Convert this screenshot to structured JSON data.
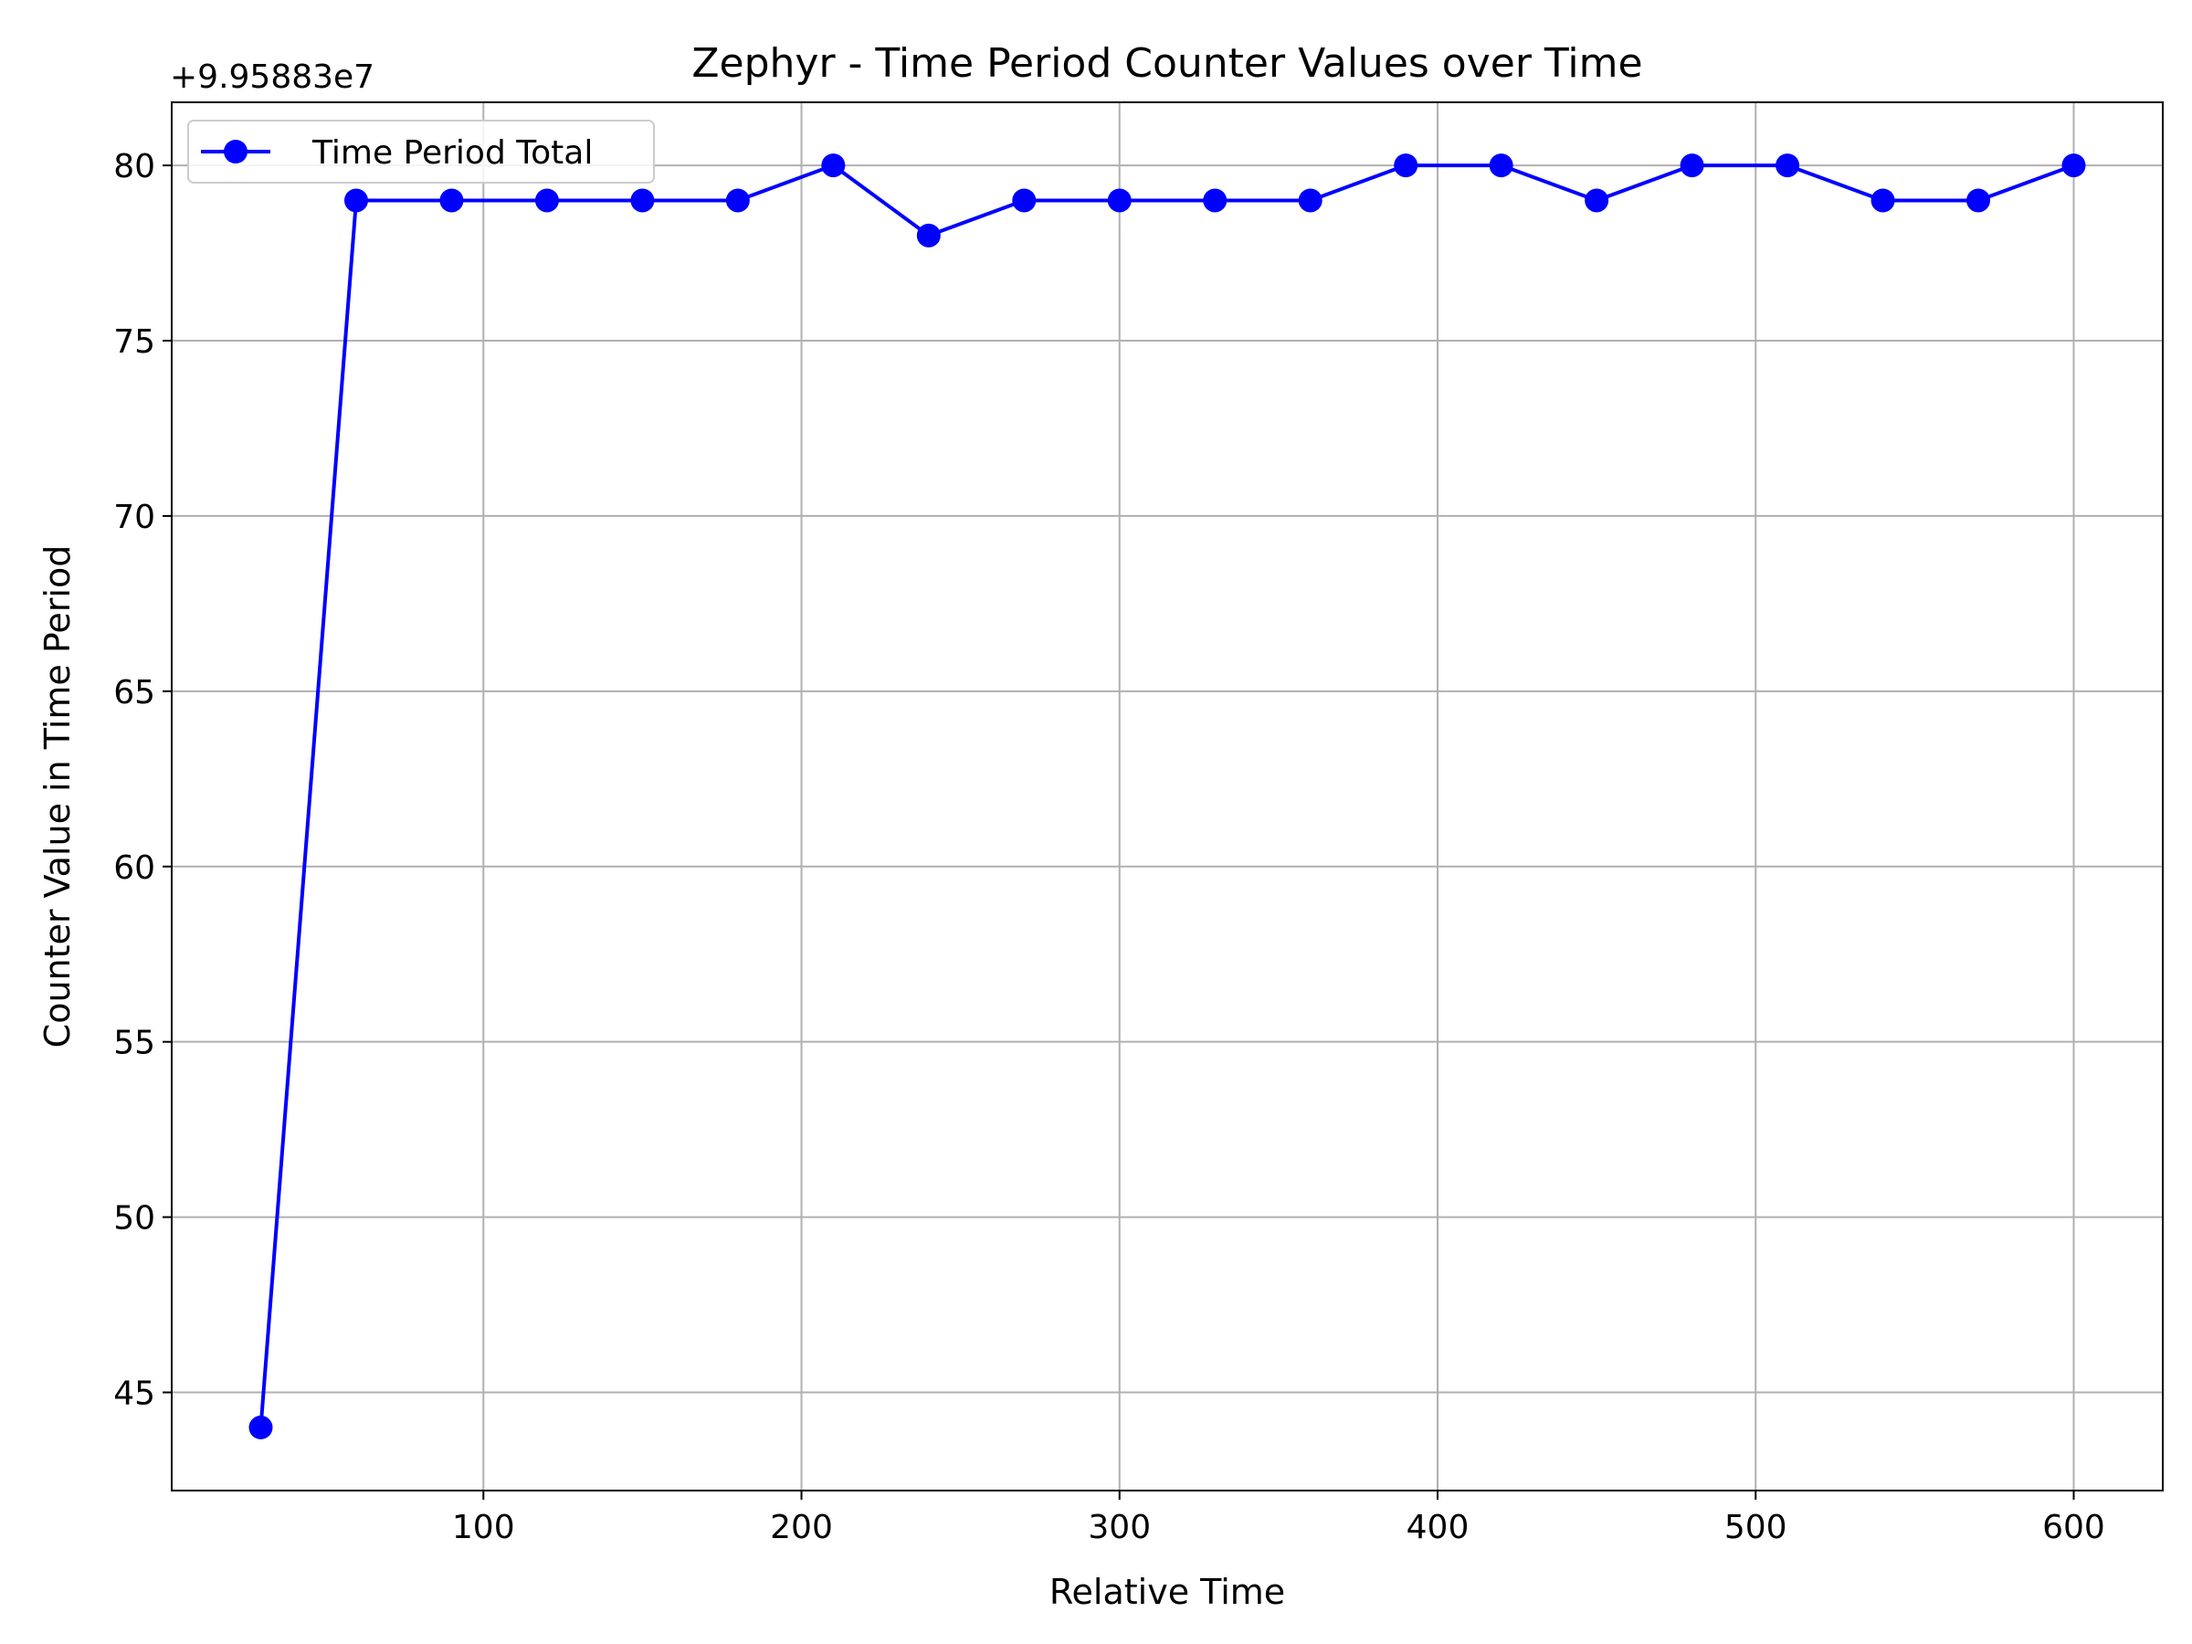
{
  "chart_data": {
    "type": "line",
    "title": "Zephyr - Time Period Counter Values over Time",
    "xlabel": "Relative Time",
    "ylabel": "Counter Value in Time Period",
    "y_offset_label": "+9.95883e7",
    "xlim": [
      2,
      628
    ],
    "ylim": [
      42.2,
      81.8
    ],
    "xticks": [
      100,
      200,
      300,
      400,
      500,
      600
    ],
    "yticks": [
      45,
      50,
      55,
      60,
      65,
      70,
      75,
      80
    ],
    "grid": true,
    "legend_position": "upper-left",
    "series": [
      {
        "name": "Time Period Total",
        "color": "#0000ff",
        "marker": "circle",
        "x": [
          30,
          60,
          90,
          120,
          150,
          180,
          210,
          240,
          270,
          300,
          330,
          360,
          390,
          420,
          450,
          480,
          510,
          540,
          570,
          600
        ],
        "y": [
          44,
          79,
          79,
          79,
          79,
          79,
          80,
          78,
          79,
          79,
          79,
          79,
          80,
          80,
          79,
          80,
          80,
          79,
          79,
          80
        ]
      }
    ]
  }
}
